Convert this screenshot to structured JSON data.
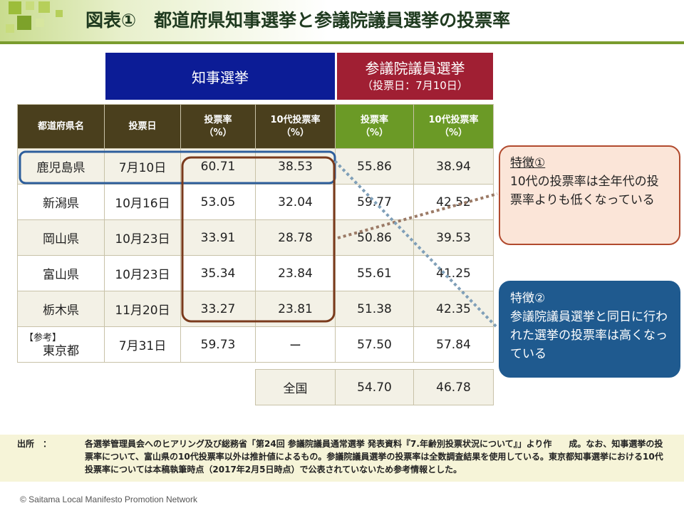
{
  "title": "図表①　都道府県知事選挙と参議院議員選挙の投票率",
  "bands": {
    "governor": "知事選挙",
    "councillor": "参議院議員選挙",
    "councillor_sub": "（投票日：7月10日）"
  },
  "table": {
    "headers": [
      "都道府県名",
      "投票日",
      "投票率\n（%）",
      "10代投票率\n（%）",
      "投票率\n（%）",
      "10代投票率\n（%）"
    ],
    "rows": [
      {
        "pref": "鹿児島県",
        "date": "7月10日",
        "gov_rate": "60.71",
        "gov_teen": "38.53",
        "hc_rate": "55.86",
        "hc_teen": "38.94"
      },
      {
        "pref": "新潟県",
        "date": "10月16日",
        "gov_rate": "53.05",
        "gov_teen": "32.04",
        "hc_rate": "59.77",
        "hc_teen": "42.52"
      },
      {
        "pref": "岡山県",
        "date": "10月23日",
        "gov_rate": "33.91",
        "gov_teen": "28.78",
        "hc_rate": "50.86",
        "hc_teen": "39.53"
      },
      {
        "pref": "富山県",
        "date": "10月23日",
        "gov_rate": "35.34",
        "gov_teen": "23.84",
        "hc_rate": "55.61",
        "hc_teen": "41.25"
      },
      {
        "pref": "栃木県",
        "date": "11月20日",
        "gov_rate": "33.27",
        "gov_teen": "23.81",
        "hc_rate": "51.38",
        "hc_teen": "42.35"
      },
      {
        "pref_note": "【参考】",
        "pref": "東京都",
        "date": "7月31日",
        "gov_rate": "59.73",
        "gov_teen": "ー",
        "hc_rate": "57.50",
        "hc_teen": "57.84"
      }
    ],
    "national": {
      "label": "全国",
      "hc_rate": "54.70",
      "hc_teen": "46.78"
    }
  },
  "callouts": [
    {
      "title": "特徴①",
      "body": "10代の投票率は全年代の投票率よりも低くなっている"
    },
    {
      "title": "特徴②",
      "body": "参議院議員選挙と同日に行われた選挙の投票率は高くなっている"
    }
  ],
  "footer": {
    "label": "出所　：",
    "text": "各選挙管理員会へのヒアリング及び総務省「第24回 参議院議員通常選挙 発表資料『7.年齢別投票状況について』」より作　　成。なお、知事選挙の投票率について、富山県の10代投票率以外は推計値によるもの。参議院議員選挙の投票率は全数調査結果を使用している。東京都知事選挙における10代投票率については本稿執筆時点（2017年2月5日時点）で公表されていないため参考情報とした。"
  },
  "copyright": "© Saitama Local Manifesto Promotion Network",
  "colors": {
    "title_rule": "#7a9c2e",
    "governor_band": "#0c1c96",
    "councillor_band": "#a01f33",
    "header_dark": "#4a3f1d",
    "header_green": "#6b9a26",
    "highlight_blue": "#2d5e9c",
    "highlight_brown": "#7a3a1c",
    "callout1_border": "#b14a2e",
    "callout2_fill": "#1f5a8f"
  }
}
